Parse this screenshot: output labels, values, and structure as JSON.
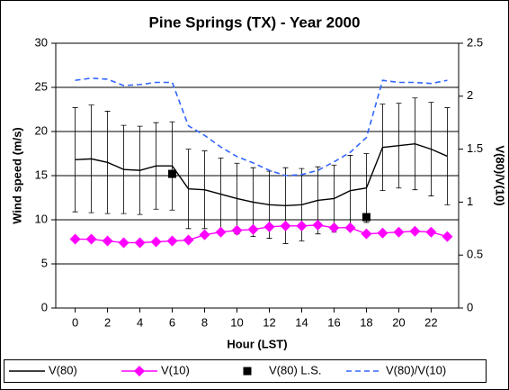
{
  "chart_data": {
    "type": "line",
    "title": "Pine Springs (TX) - Year 2000",
    "x_label": "Hour (LST)",
    "y_label": "Wind speed (m/s)",
    "y2_label": "V(80)/V(10)",
    "x": [
      0,
      1,
      2,
      3,
      4,
      5,
      6,
      7,
      8,
      9,
      10,
      11,
      12,
      13,
      14,
      15,
      16,
      17,
      18,
      19,
      20,
      21,
      22,
      23
    ],
    "xlim": [
      -1.2,
      23.7
    ],
    "xticks": [
      0,
      2,
      4,
      6,
      8,
      10,
      12,
      14,
      16,
      18,
      20,
      22
    ],
    "ylim": [
      0,
      30
    ],
    "yticks": [
      0,
      5,
      10,
      15,
      20,
      25,
      30
    ],
    "y2lim": [
      0,
      2.5
    ],
    "y2ticks": [
      0,
      0.5,
      1,
      1.5,
      2,
      2.5
    ],
    "grid": true,
    "legend": "bottom",
    "series": [
      {
        "name": "V(80)",
        "color": "#000000",
        "marker": "none",
        "dash": false,
        "values": [
          16.8,
          16.9,
          16.5,
          15.7,
          15.6,
          16.1,
          16.1,
          13.5,
          13.4,
          12.9,
          12.4,
          12.0,
          11.7,
          11.6,
          11.7,
          12.2,
          12.4,
          13.3,
          13.6,
          18.2,
          18.4,
          18.6,
          18.0,
          17.2
        ],
        "errors": [
          5.9,
          6.1,
          5.8,
          5.0,
          5.0,
          4.9,
          5.0,
          4.5,
          4.4,
          4.1,
          4.0,
          3.9,
          3.8,
          4.3,
          4.1,
          3.8,
          3.8,
          4.0,
          3.9,
          4.9,
          4.8,
          5.2,
          5.3,
          5.5
        ]
      },
      {
        "name": "V(10)",
        "color": "#ff00ff",
        "marker": "diamond",
        "dash": false,
        "values": [
          7.8,
          7.8,
          7.6,
          7.4,
          7.4,
          7.5,
          7.6,
          7.7,
          8.3,
          8.6,
          8.8,
          8.9,
          9.2,
          9.3,
          9.3,
          9.4,
          9.1,
          9.1,
          8.4,
          8.5,
          8.6,
          8.7,
          8.6,
          8.1
        ]
      },
      {
        "name": "V(80) L.S.",
        "color": "#000000",
        "marker": "square",
        "dash": false,
        "no_line": true,
        "values": [
          null,
          null,
          null,
          null,
          null,
          null,
          15.2,
          null,
          null,
          null,
          null,
          null,
          null,
          null,
          null,
          null,
          null,
          null,
          10.3,
          null,
          null,
          null,
          null,
          null
        ]
      },
      {
        "name": "V(80)/V(10)",
        "color": "#3366ff",
        "marker": "none",
        "dash": true,
        "axis": "y2",
        "values": [
          2.15,
          2.17,
          2.16,
          2.1,
          2.11,
          2.13,
          2.13,
          1.72,
          1.63,
          1.52,
          1.43,
          1.37,
          1.3,
          1.25,
          1.26,
          1.3,
          1.38,
          1.47,
          1.61,
          2.15,
          2.13,
          2.13,
          2.12,
          2.15
        ]
      }
    ]
  }
}
